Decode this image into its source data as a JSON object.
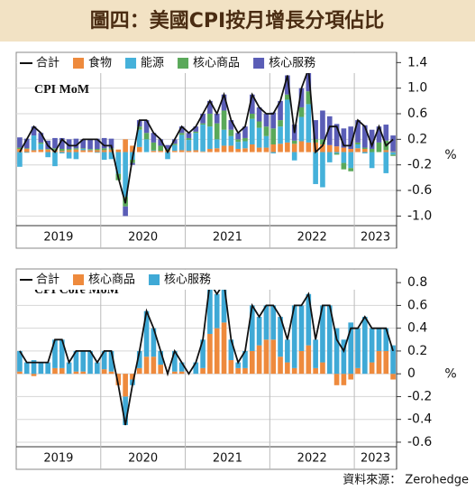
{
  "title": "圖四：美國CPI按月增長分項佔比",
  "source": "資料來源： Zerohedge",
  "chart_data": [
    {
      "type": "bar",
      "stacked": true,
      "title": "CPI MoM",
      "y_unit": "%",
      "grid": true,
      "categories": [
        "2019",
        null,
        null,
        null,
        null,
        null,
        null,
        null,
        null,
        null,
        null,
        null,
        "2020",
        null,
        null,
        null,
        null,
        null,
        null,
        null,
        null,
        null,
        null,
        null,
        "2021",
        null,
        null,
        null,
        null,
        null,
        null,
        null,
        null,
        null,
        null,
        null,
        "2022",
        null,
        null,
        null,
        null,
        null,
        null,
        null,
        null,
        null,
        null,
        null,
        "2023",
        null,
        null,
        null,
        null,
        null
      ],
      "ylim": [
        -1.15,
        1.56
      ],
      "yticks": [
        1.4,
        {
          "value": 1,
          "label": "1.0"
        },
        0.6,
        0.2,
        -0.2,
        -0.6,
        {
          "value": -1,
          "label": "-1.0"
        }
      ],
      "series": [
        {
          "name": "食物",
          "color": "#ee8a3d",
          "values": [
            0.05,
            0.05,
            0.03,
            0.04,
            0.04,
            0.03,
            0.02,
            0.03,
            0.04,
            0.03,
            0.03,
            0.03,
            0.03,
            0.04,
            0.04,
            0.2,
            0.1,
            0.08,
            0,
            0.02,
            0.02,
            0.03,
            0.02,
            0.03,
            0.02,
            0.03,
            0.01,
            0.05,
            0.06,
            0.1,
            0.1,
            0.05,
            0.06,
            0.12,
            0.07,
            0.07,
            0.12,
            0.13,
            0.15,
            0.13,
            0.17,
            0.15,
            0.15,
            0.12,
            0.11,
            0.09,
            0.07,
            0.05,
            0.06,
            0.05,
            0,
            0,
            0.03,
            0.01
          ]
        },
        {
          "name": "能源",
          "color": "#45b1da",
          "values": [
            -0.23,
            -0.01,
            0.23,
            0.09,
            -0.08,
            -0.22,
            -0.02,
            -0.1,
            -0.11,
            0.02,
            0.01,
            -0.01,
            -0.12,
            -0.11,
            -0.34,
            -0.7,
            -0.12,
            0.27,
            0.2,
            0.01,
            0,
            -0.11,
            0.09,
            0.24,
            0.17,
            0.27,
            0.42,
            0.35,
            0.14,
            0.25,
            0.15,
            0.11,
            0.11,
            0.4,
            0.31,
            0.18,
            -0.02,
            0.27,
            0.67,
            -0.13,
            0.38,
            0.6,
            -0.5,
            -0.55,
            -0.16,
            -0.02,
            -0.17,
            -0.25,
            0.06,
            -0.02,
            -0.25,
            0,
            -0.33,
            -0.04
          ]
        },
        {
          "name": "核心商品",
          "color": "#5aa95a",
          "values": [
            0.02,
            0.01,
            0,
            0.02,
            0.01,
            0.03,
            0.03,
            0.02,
            0.02,
            0.01,
            0.01,
            0.02,
            0.03,
            0.02,
            -0.1,
            -0.15,
            -0.05,
            0.05,
            0.1,
            0.12,
            0.08,
            0.02,
            0.02,
            0.03,
            0.03,
            0.02,
            0.02,
            0.2,
            0.25,
            0.3,
            0.1,
            0.04,
            0.05,
            0.08,
            0.1,
            0.15,
            0.25,
            0.1,
            0.08,
            0.05,
            0.15,
            0.2,
            0.05,
            0.08,
            0,
            -0.02,
            -0.1,
            -0.05,
            0.03,
            0.02,
            0.05,
            0.15,
            0.15,
            -0.02
          ]
        },
        {
          "name": "核心服務",
          "color": "#5a5db6",
          "values": [
            0.16,
            0.15,
            0.14,
            0.15,
            0.13,
            0.16,
            0.17,
            0.15,
            0.15,
            0.14,
            0.15,
            0.16,
            0.16,
            0.15,
            0,
            -0.15,
            -0.03,
            0.1,
            0.2,
            0.15,
            0.1,
            0.06,
            0.07,
            0.1,
            0.08,
            0.08,
            0.15,
            0.2,
            0.15,
            0.25,
            0.15,
            0.1,
            0.18,
            0.3,
            0.22,
            0.2,
            0.25,
            0.3,
            0.3,
            0.25,
            0.3,
            0.35,
            0.3,
            0.45,
            0.45,
            0.35,
            0.3,
            0.35,
            0.35,
            0.35,
            0.3,
            0.25,
            0.25,
            0.25
          ]
        },
        {
          "name": "合計",
          "color": "#111111",
          "kind": "line",
          "values": [
            0,
            0.2,
            0.4,
            0.3,
            0.1,
            0,
            0.2,
            0.1,
            0.1,
            0.2,
            0.2,
            0.2,
            0.1,
            0.1,
            -0.4,
            -0.8,
            -0.1,
            0.5,
            0.5,
            0.3,
            0.2,
            0,
            0.2,
            0.4,
            0.3,
            0.4,
            0.6,
            0.8,
            0.6,
            0.9,
            0.5,
            0.3,
            0.4,
            0.9,
            0.7,
            0.6,
            0.6,
            0.8,
            1.2,
            0.3,
            1,
            1.3,
            0,
            0.1,
            0.4,
            0.4,
            0.1,
            0.1,
            0.5,
            0.4,
            0.1,
            0.4,
            0.1,
            0.2
          ]
        }
      ]
    },
    {
      "type": "bar",
      "stacked": true,
      "title": "CPI Core MoM",
      "y_unit": "%",
      "grid": true,
      "categories": [
        "2019",
        null,
        null,
        null,
        null,
        null,
        null,
        null,
        null,
        null,
        null,
        null,
        "2020",
        null,
        null,
        null,
        null,
        null,
        null,
        null,
        null,
        null,
        null,
        null,
        "2021",
        null,
        null,
        null,
        null,
        null,
        null,
        null,
        null,
        null,
        null,
        null,
        "2022",
        null,
        null,
        null,
        null,
        null,
        null,
        null,
        null,
        null,
        null,
        null,
        "2023",
        null,
        null,
        null,
        null,
        null
      ],
      "ylim": [
        -0.64,
        0.92
      ],
      "yticks": [
        0.8,
        0.6,
        0.4,
        0.2,
        0,
        -0.2,
        -0.4,
        -0.6
      ],
      "series": [
        {
          "name": "核心商品",
          "color": "#ee8a3d",
          "values": [
            0.02,
            0,
            -0.02,
            0,
            0,
            0.05,
            0.05,
            0,
            0.02,
            0.02,
            0,
            0,
            0.04,
            0.02,
            -0.1,
            -0.2,
            -0.05,
            0.05,
            0.15,
            0.15,
            0.08,
            0,
            0.02,
            0.02,
            0,
            0,
            0.05,
            0.35,
            0.4,
            0.45,
            0.12,
            0.05,
            0.05,
            0.2,
            0.25,
            0.3,
            0.3,
            0.15,
            0.1,
            0.05,
            0.2,
            0.25,
            0.05,
            0.1,
            0,
            -0.1,
            -0.1,
            -0.05,
            0.05,
            0,
            0.1,
            0.2,
            0.2,
            -0.05
          ]
        },
        {
          "name": "核心服務",
          "color": "#3fa9d6",
          "values": [
            0.18,
            0.1,
            0.12,
            0.1,
            0.1,
            0.25,
            0.25,
            0.1,
            0.18,
            0.18,
            0.2,
            0.1,
            0.16,
            0.18,
            0,
            -0.25,
            -0.05,
            0.15,
            0.4,
            0.25,
            0.12,
            0,
            0.18,
            0.08,
            0,
            0.1,
            0.25,
            0.45,
            0.3,
            0.35,
            0.18,
            0.05,
            0.15,
            0.4,
            0.25,
            0.3,
            0.3,
            0.35,
            0.2,
            0.55,
            0.4,
            0.45,
            0.25,
            0.5,
            0.6,
            0.4,
            0.3,
            0.45,
            0.35,
            0.5,
            0.3,
            0.2,
            0.2,
            0.25
          ]
        },
        {
          "name": "合計",
          "color": "#111111",
          "kind": "line",
          "values": [
            0.2,
            0.1,
            0.1,
            0.1,
            0.1,
            0.3,
            0.3,
            0.1,
            0.2,
            0.2,
            0.2,
            0.1,
            0.2,
            0.2,
            -0.1,
            -0.45,
            -0.1,
            0.2,
            0.55,
            0.4,
            0.2,
            0,
            0.2,
            0.1,
            0,
            0.1,
            0.3,
            0.8,
            0.7,
            0.8,
            0.3,
            0.1,
            0.2,
            0.6,
            0.5,
            0.6,
            0.6,
            0.5,
            0.3,
            0.6,
            0.6,
            0.7,
            0.3,
            0.6,
            0.6,
            0.3,
            0.2,
            0.4,
            0.4,
            0.5,
            0.4,
            0.4,
            0.4,
            0.2
          ]
        }
      ]
    }
  ]
}
